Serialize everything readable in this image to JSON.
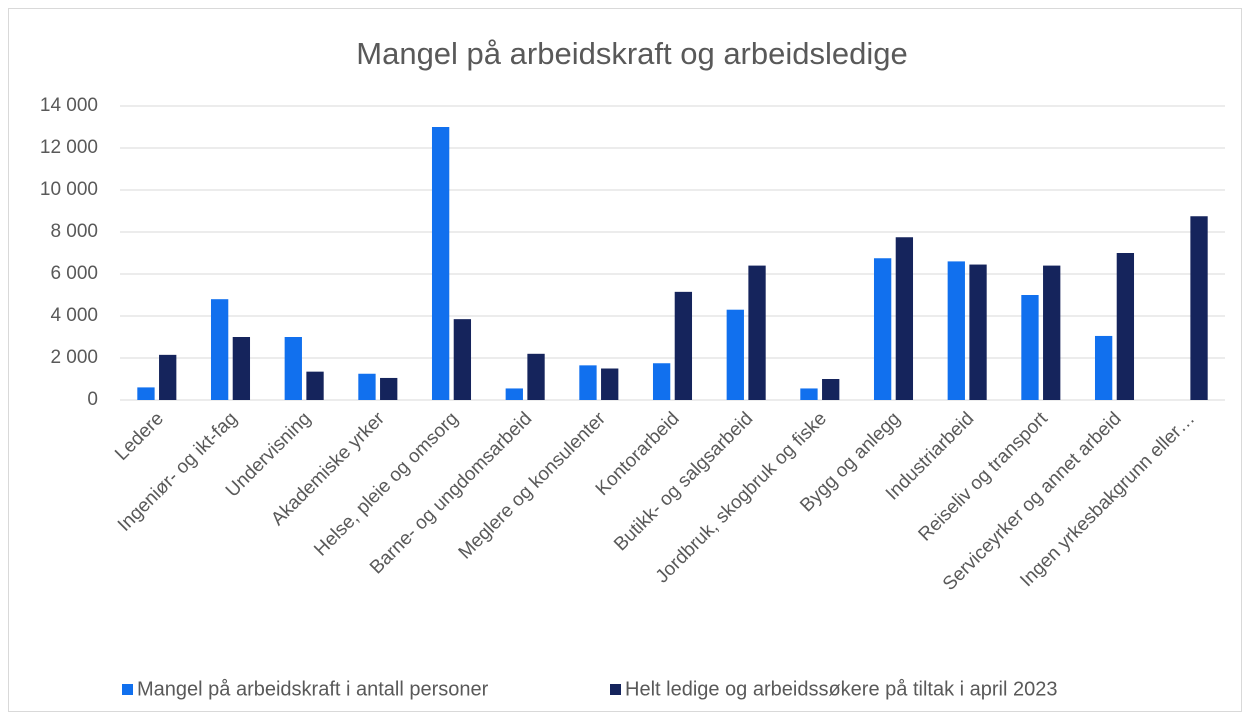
{
  "chart_data": {
    "type": "bar",
    "title": "Mangel på arbeidskraft og arbeidsledige",
    "categories": [
      "Ledere",
      "Ingeniør- og ikt-fag",
      "Undervisning",
      "Akademiske yrker",
      "Helse, pleie og omsorg",
      "Barne- og ungdomsarbeid",
      "Meglere og konsulenter",
      "Kontorarbeid",
      "Butikk- og salgsarbeid",
      "Jordbruk, skogbruk og fiske",
      "Bygg og anlegg",
      "Industriarbeid",
      "Reiseliv og transport",
      "Serviceyrker og annet arbeid",
      "Ingen yrkesbakgrunn eller…"
    ],
    "series": [
      {
        "name": "Mangel på arbeidskraft i antall personer",
        "color": "#1170ee",
        "values": [
          600,
          4800,
          3000,
          1250,
          13000,
          550,
          1650,
          1750,
          4300,
          550,
          6750,
          6600,
          5000,
          3050,
          null
        ]
      },
      {
        "name": "Helt ledige og arbeidssøkere på tiltak i april 2023",
        "color": "#15245c",
        "values": [
          2150,
          3000,
          1350,
          1050,
          3850,
          2200,
          1500,
          5150,
          6400,
          1000,
          7750,
          6450,
          6400,
          7000,
          8750
        ]
      }
    ],
    "ylim": [
      0,
      14000
    ],
    "yticks": [
      0,
      {
        "value": 2000,
        "label": "2 000"
      },
      {
        "value": 4000,
        "label": "4 000"
      },
      {
        "value": 6000,
        "label": "6 000"
      },
      {
        "value": 8000,
        "label": "8 000"
      },
      {
        "value": 10000,
        "label": "10 000"
      },
      {
        "value": 12000,
        "label": "12 000"
      },
      {
        "value": 14000,
        "label": "14 000"
      }
    ],
    "grid": true,
    "legend": "bottom"
  }
}
